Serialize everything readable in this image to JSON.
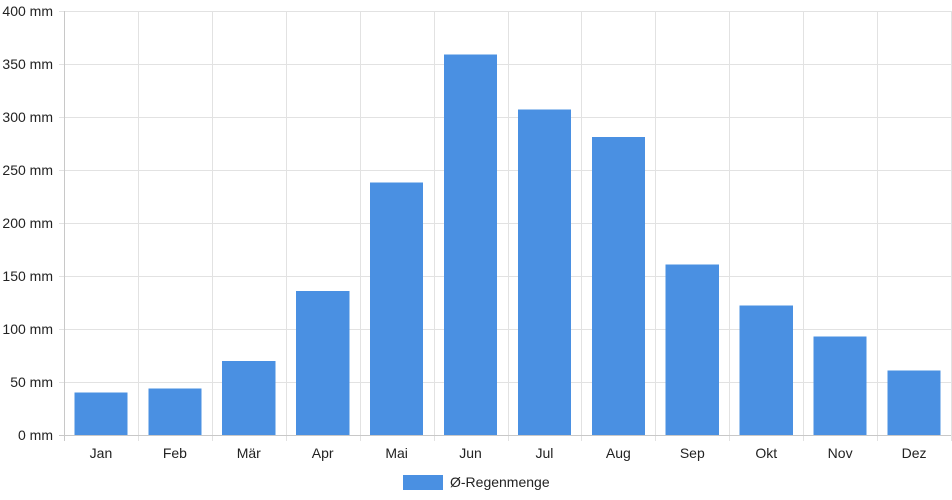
{
  "chart_data": {
    "type": "bar",
    "categories": [
      "Jan",
      "Feb",
      "Mär",
      "Apr",
      "Mai",
      "Jun",
      "Jul",
      "Aug",
      "Sep",
      "Okt",
      "Nov",
      "Dez"
    ],
    "series": [
      {
        "name": "Ø-Regenmenge",
        "color": "#4a90e2",
        "values": [
          40,
          44,
          70,
          136,
          238,
          359,
          307,
          281,
          161,
          122,
          93,
          61
        ]
      }
    ],
    "ylim": [
      0,
      400
    ],
    "yticks": [
      0,
      50,
      100,
      150,
      200,
      250,
      300,
      350,
      400
    ],
    "y_tick_labels": [
      "0 mm",
      "50 mm",
      "100 mm",
      "150 mm",
      "200 mm",
      "250 mm",
      "300 mm",
      "350 mm",
      "400 mm"
    ],
    "grid": true,
    "legend": "bottom-center"
  }
}
